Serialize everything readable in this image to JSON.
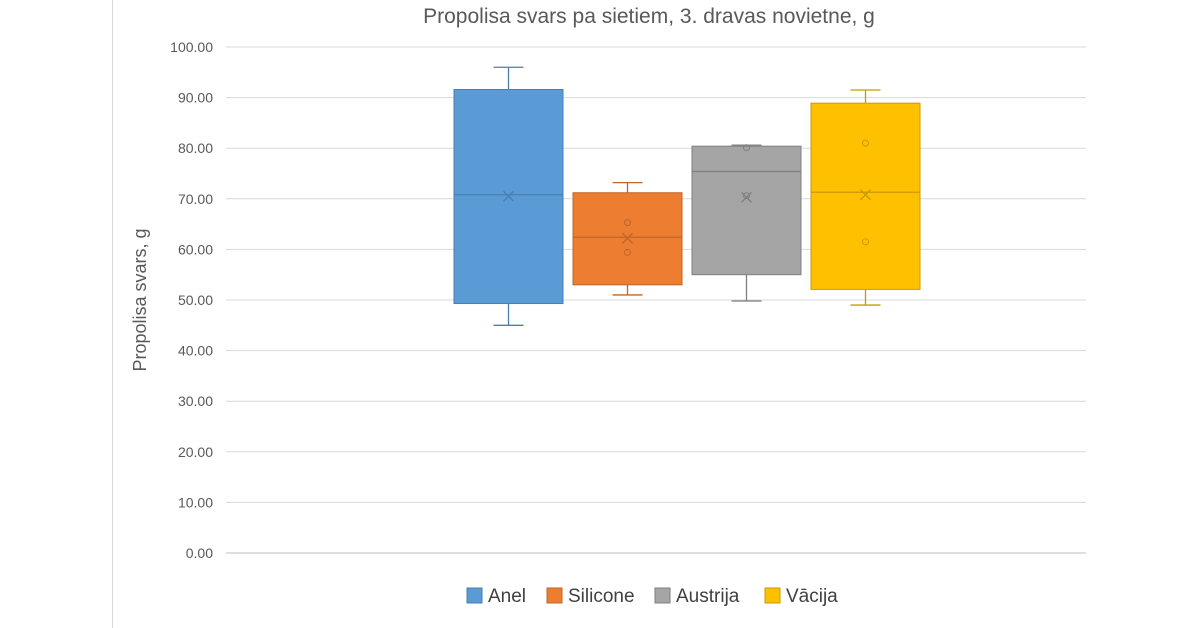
{
  "chart_data": {
    "type": "box",
    "title": "Propolisa svars pa sietiem, 3. dravas novietne, g",
    "ylabel": "Propolisa svars, g",
    "xlabel": "",
    "ylim": [
      0,
      100
    ],
    "y_ticks": [
      "0.00",
      "10.00",
      "20.00",
      "30.00",
      "40.00",
      "50.00",
      "60.00",
      "70.00",
      "80.00",
      "90.00",
      "100.00"
    ],
    "grid": true,
    "legend_position": "bottom",
    "series": [
      {
        "name": "Anel",
        "color": "#5b9bd5",
        "stroke": "#4a7eb0",
        "min": 45.0,
        "q1": 49.3,
        "median": 70.8,
        "q3": 91.6,
        "max": 96.0,
        "mean": 70.5,
        "outliers": []
      },
      {
        "name": "Silicone",
        "color": "#ed7d31",
        "stroke": "#c0652a",
        "min": 51.0,
        "q1": 53.0,
        "median": 62.4,
        "q3": 71.2,
        "max": 73.2,
        "mean": 62.2,
        "outliers": [
          65.3,
          59.4
        ]
      },
      {
        "name": "Austrija",
        "color": "#a5a5a5",
        "stroke": "#7f7f7f",
        "min": 49.8,
        "q1": 55.0,
        "median": 75.4,
        "q3": 80.4,
        "max": 80.6,
        "mean": 70.3,
        "outliers": [
          80.1,
          70.6
        ]
      },
      {
        "name": "Vācija",
        "color": "#ffc000",
        "stroke": "#c99a00",
        "min": 49.0,
        "q1": 52.1,
        "median": 71.3,
        "q3": 88.9,
        "max": 91.5,
        "mean": 70.8,
        "outliers": [
          81.0,
          61.5
        ]
      }
    ]
  }
}
